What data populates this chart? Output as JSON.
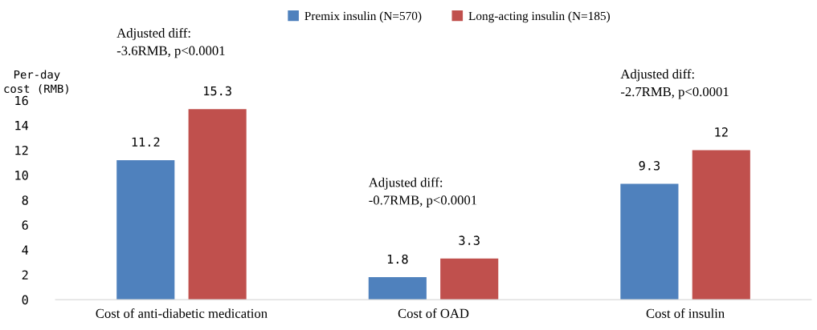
{
  "chart_data": {
    "type": "bar",
    "ylabel": "Per-day\ncost (RMB)",
    "categories": [
      "Cost of anti-diabetic medication",
      "Cost of OAD",
      "Cost of insulin"
    ],
    "series": [
      {
        "name": "Premix insulin (N=570)",
        "color": "#4f81bd",
        "values": [
          11.2,
          1.8,
          9.3
        ]
      },
      {
        "name": "Long-acting insulin (N=185)",
        "color": "#c0504d",
        "values": [
          15.3,
          3.3,
          12
        ]
      }
    ],
    "data_labels": true,
    "ylim": [
      0,
      16
    ],
    "yticks": [
      0,
      2,
      4,
      6,
      8,
      10,
      12,
      14,
      16
    ],
    "annotations": [
      "Adjusted diff:\n-3.6RMB, p<0.0001",
      "Adjusted diff:\n-0.7RMB, p<0.0001",
      "Adjusted diff:\n-2.7RMB, p<0.0001"
    ],
    "legend": "top",
    "grid": false
  }
}
